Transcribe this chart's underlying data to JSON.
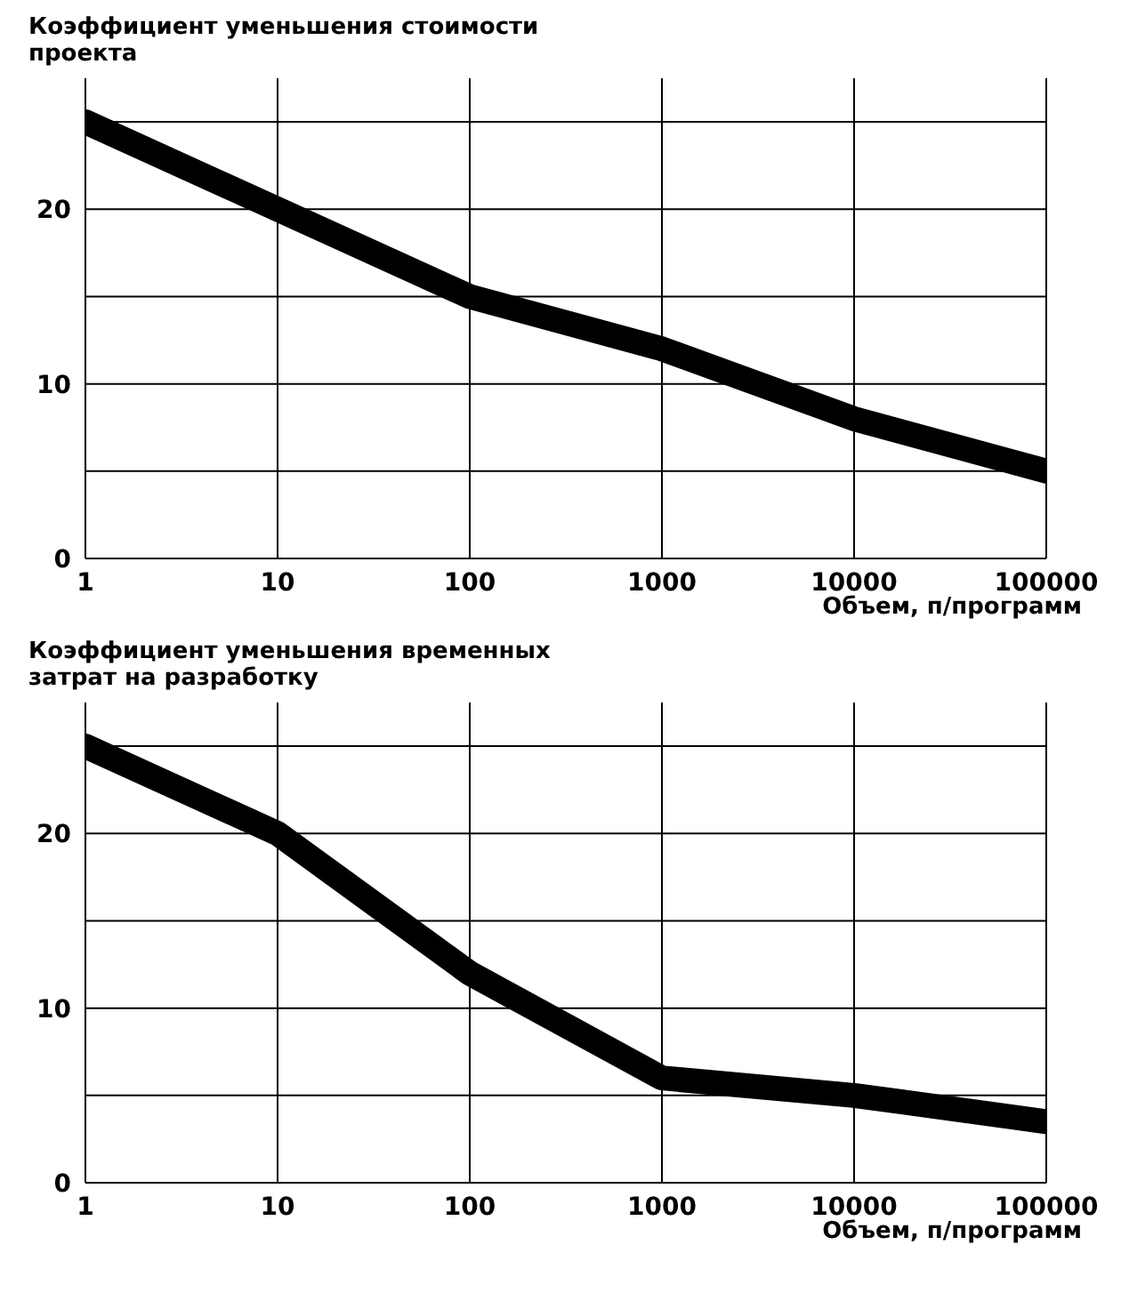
{
  "chart_data": [
    {
      "type": "line",
      "title": "Коэффициент уменьшения стоимости проекта",
      "xlabel": "Объем, п/программ",
      "x": [
        1,
        10,
        100,
        1000,
        10000,
        100000
      ],
      "log": "x",
      "xlim": [
        1,
        100000
      ],
      "xticks": [
        1,
        10,
        100,
        1000,
        10000,
        100000
      ],
      "ylim": [
        0,
        27.5
      ],
      "yticks": [
        0,
        {
          "value": 5,
          "label": null
        },
        10,
        {
          "value": 15,
          "label": null
        },
        20,
        {
          "value": 25,
          "label": null
        }
      ],
      "grid": true,
      "marker": "none",
      "series": [
        {
          "color": "#000000",
          "values": [
            25,
            20,
            15,
            12,
            8,
            5
          ]
        }
      ]
    },
    {
      "type": "line",
      "title": "Коэффициент уменьшения временных затрат на разработку",
      "xlabel": "Объем, п/программ",
      "x": [
        1,
        10,
        100,
        1000,
        10000,
        100000
      ],
      "log": "x",
      "xlim": [
        1,
        100000
      ],
      "xticks": [
        1,
        10,
        100,
        1000,
        10000,
        100000
      ],
      "ylim": [
        0,
        27.5
      ],
      "yticks": [
        0,
        {
          "value": 5,
          "label": null
        },
        10,
        {
          "value": 15,
          "label": null
        },
        20,
        {
          "value": 25,
          "label": null
        }
      ],
      "grid": true,
      "marker": "none",
      "series": [
        {
          "color": "#000000",
          "values": [
            25,
            20,
            12,
            6,
            5,
            3.5
          ]
        }
      ]
    }
  ]
}
